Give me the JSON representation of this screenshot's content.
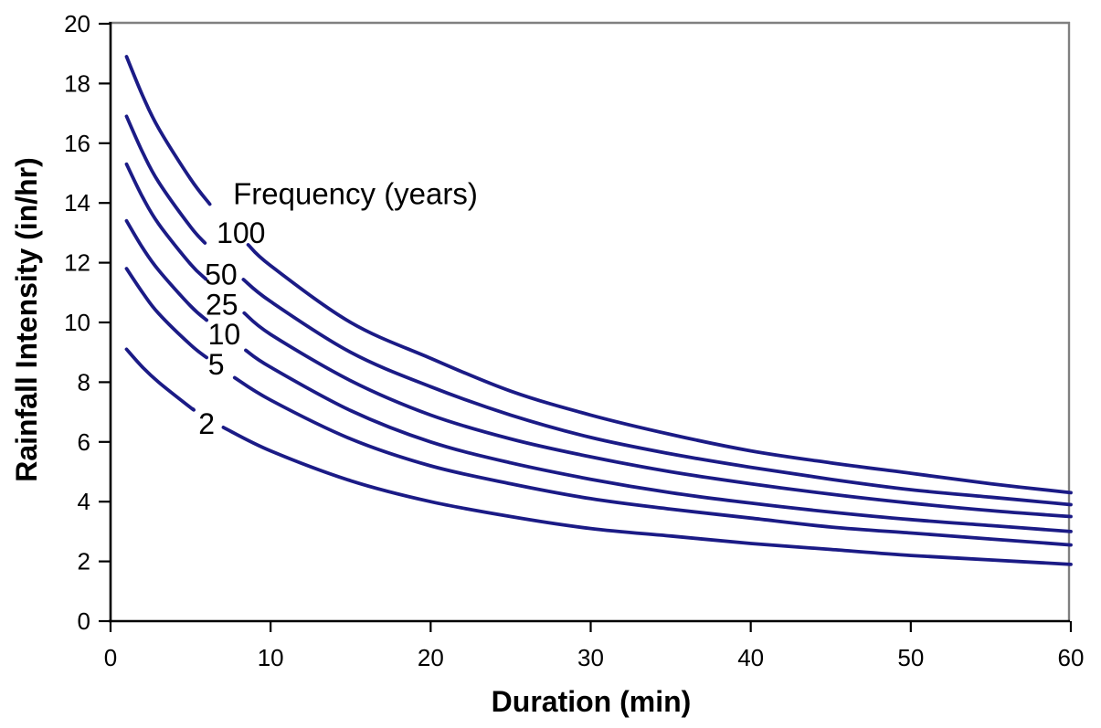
{
  "chart_data": {
    "type": "line",
    "title": "",
    "xlabel": "Duration (min)",
    "ylabel": "Rainfall Intensity (in/hr)",
    "legend_title": "Frequency (years)",
    "xlim": [
      0,
      60
    ],
    "ylim": [
      0,
      20
    ],
    "xticks": [
      0,
      10,
      20,
      30,
      40,
      50,
      60
    ],
    "yticks": [
      0,
      2,
      4,
      6,
      8,
      10,
      12,
      14,
      16,
      18,
      20
    ],
    "grid": "off",
    "legend_position": "inline curve labels near upper left",
    "x": [
      1,
      2,
      3,
      5,
      7,
      10,
      15,
      20,
      25,
      30,
      35,
      40,
      45,
      50,
      55,
      60
    ],
    "series": [
      {
        "name": "100",
        "values": [
          18.9,
          17.6,
          16.5,
          14.8,
          13.4,
          11.9,
          10.0,
          8.8,
          7.7,
          6.9,
          6.25,
          5.7,
          5.3,
          4.95,
          4.6,
          4.3
        ],
        "label": {
          "t": 8.15,
          "v": 13.0
        },
        "gap": [
          6.2,
          8.6
        ]
      },
      {
        "name": "50",
        "values": [
          16.9,
          15.7,
          14.7,
          13.2,
          12.0,
          10.7,
          9.0,
          7.85,
          6.9,
          6.15,
          5.6,
          5.15,
          4.75,
          4.4,
          4.15,
          3.9
        ],
        "label": {
          "t": 6.9,
          "v": 11.6
        },
        "gap": [
          5.9,
          8.3
        ]
      },
      {
        "name": "25",
        "values": [
          15.3,
          14.2,
          13.3,
          11.95,
          10.9,
          9.6,
          8.05,
          6.9,
          6.1,
          5.5,
          5.0,
          4.6,
          4.25,
          3.95,
          3.7,
          3.5
        ],
        "label": {
          "t": 6.95,
          "v": 10.6
        },
        "gap": [
          5.95,
          8.35
        ]
      },
      {
        "name": "10",
        "values": [
          13.4,
          12.5,
          11.75,
          10.55,
          9.6,
          8.5,
          7.05,
          6.0,
          5.3,
          4.75,
          4.3,
          3.95,
          3.65,
          3.4,
          3.2,
          3.0
        ],
        "label": {
          "t": 7.1,
          "v": 9.6
        },
        "gap": [
          6.0,
          8.45
        ]
      },
      {
        "name": "5",
        "values": [
          11.8,
          11.0,
          10.3,
          9.25,
          8.4,
          7.4,
          6.1,
          5.2,
          4.6,
          4.1,
          3.75,
          3.45,
          3.15,
          2.95,
          2.75,
          2.55
        ],
        "label": {
          "t": 6.6,
          "v": 8.6
        },
        "gap": [
          6.0,
          7.75
        ]
      },
      {
        "name": "2",
        "values": [
          9.1,
          8.5,
          8.0,
          7.15,
          6.5,
          5.7,
          4.7,
          4.0,
          3.5,
          3.1,
          2.85,
          2.6,
          2.4,
          2.2,
          2.05,
          1.9
        ],
        "label": {
          "t": 6.0,
          "v": 6.6
        },
        "gap": [
          5.15,
          7.05
        ]
      }
    ],
    "colors": {
      "line": "#1b1b86",
      "axis": "#000000",
      "border": "#808080",
      "text": "#000000"
    }
  }
}
